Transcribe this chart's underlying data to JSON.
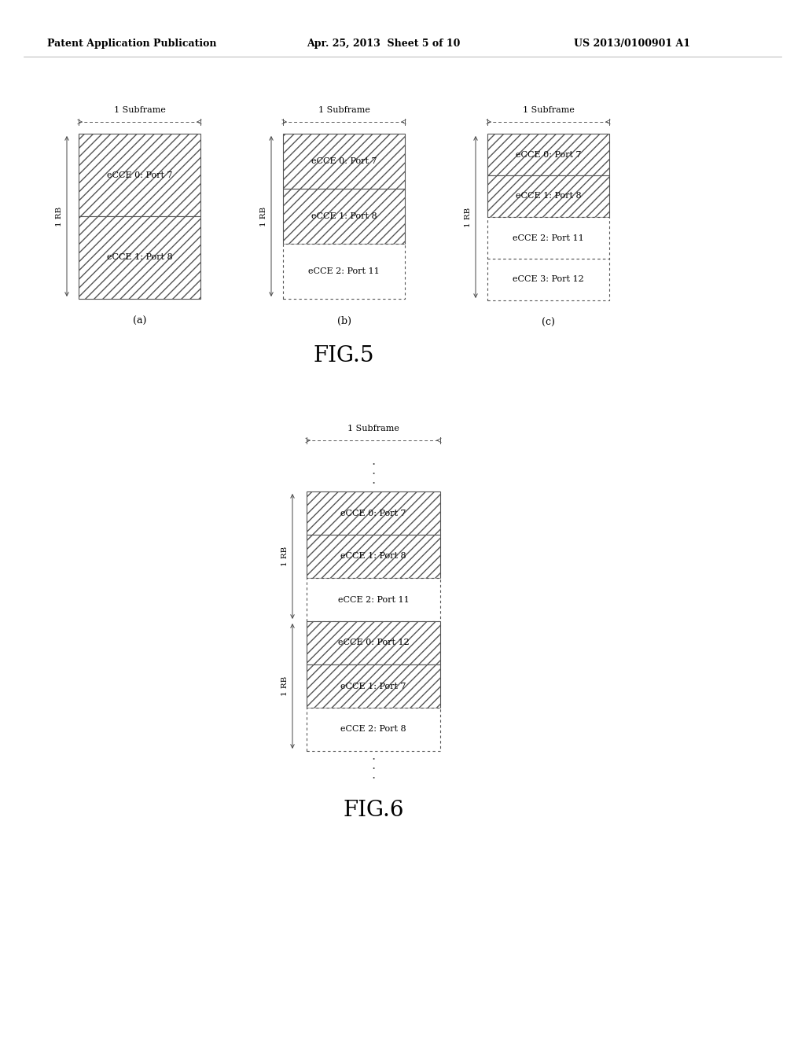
{
  "header_left": "Patent Application Publication",
  "header_mid": "Apr. 25, 2013  Sheet 5 of 10",
  "header_right": "US 2013/0100901 A1",
  "fig5_label": "FIG.5",
  "fig6_label": "FIG.6",
  "fig_a_label": "(a)",
  "fig_b_label": "(b)",
  "fig_c_label": "(c)",
  "subframe_label": "1 Subframe",
  "rb_label": "1 RB",
  "fig5a_cells": [
    "eCCE 0: Port 7",
    "eCCE 1: Port 8"
  ],
  "fig5b_cells": [
    "eCCE 0: Port 7",
    "eCCE 1: Port 8",
    "eCCE 2: Port 11"
  ],
  "fig5c_cells": [
    "eCCE 0: Port 7",
    "eCCE 1: Port 8",
    "eCCE 2: Port 11",
    "eCCE 3: Port 12"
  ],
  "fig6_rb1_cells": [
    "eCCE 0: Port 7",
    "eCCE 1: Port 8",
    "eCCE 2: Port 11"
  ],
  "fig6_rb2_cells": [
    "eCCE 0: Port 12",
    "eCCE 1: Port 7",
    "eCCE 2: Port 8"
  ],
  "bg_color": "#ffffff",
  "text_color": "#000000",
  "header_color": "#000000",
  "edge_color": "#555555",
  "arrow_color": "#444444"
}
